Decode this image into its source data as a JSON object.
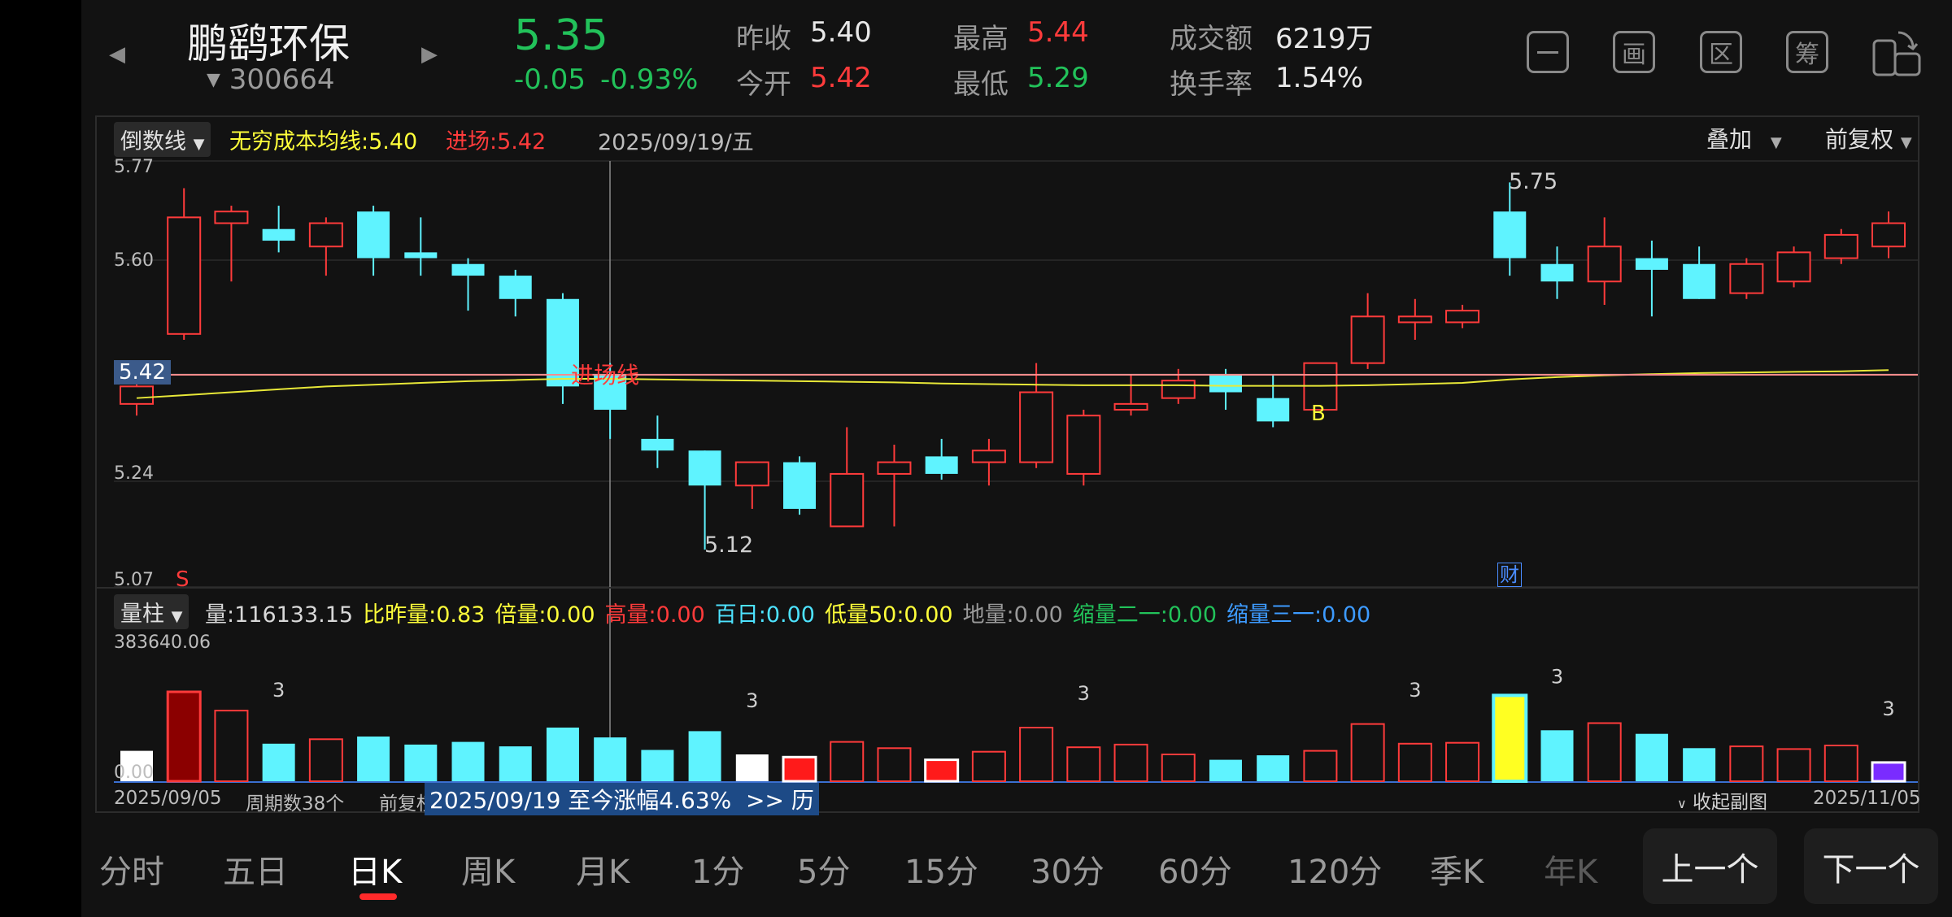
{
  "stock": {
    "name": "鹏鹞环保",
    "code": "300664",
    "price": "5.35",
    "change": "-0.05",
    "change_pct": "-0.93%"
  },
  "quote": {
    "prev_close_label": "昨收",
    "prev_close": "5.40",
    "open_label": "今开",
    "open": "5.42",
    "high_label": "最高",
    "high": "5.44",
    "low_label": "最低",
    "low": "5.29",
    "turnover_label": "成交额",
    "turnover": "6219万",
    "turnover_rate_label": "换手率",
    "turnover_rate": "1.54%"
  },
  "toolbar": {
    "icons": [
      "minus-icon",
      "draw-icon",
      "range-icon",
      "chip-icon",
      "rotate-screen-icon"
    ],
    "labels": [
      "",
      "画",
      "区",
      "筹",
      ""
    ]
  },
  "main_chart": {
    "indicator_dropdown": "倒数线",
    "ma_label": "无穷成本均线:",
    "ma_value": "5.40",
    "entry_label": "进场:",
    "entry_value": "5.42",
    "cursor_date": "2025/09/19/五",
    "overlay_dropdown": "叠加",
    "adjust_dropdown": "前复权",
    "y_ticks": [
      "5.77",
      "5.60",
      "5.42",
      "5.24",
      "5.07"
    ],
    "entry_line_label": "进场线",
    "entry_tag": "5.42",
    "max_label": "5.75",
    "min_label": "5.12",
    "sell_marker": "S",
    "buy_marker": "B",
    "finance_marker": "财"
  },
  "chart_data": {
    "type": "candlestick",
    "ylim": [
      5.07,
      5.77
    ],
    "candles": [
      {
        "o": 5.4,
        "c": 5.37,
        "h": 5.42,
        "l": 5.35,
        "color": "red"
      },
      {
        "o": 5.49,
        "c": 5.69,
        "h": 5.74,
        "l": 5.48,
        "color": "red"
      },
      {
        "o": 5.68,
        "c": 5.7,
        "h": 5.71,
        "l": 5.58,
        "color": "red"
      },
      {
        "o": 5.67,
        "c": 5.65,
        "h": 5.71,
        "l": 5.63,
        "color": "cyan"
      },
      {
        "o": 5.64,
        "c": 5.68,
        "h": 5.69,
        "l": 5.59,
        "color": "red"
      },
      {
        "o": 5.7,
        "c": 5.62,
        "h": 5.71,
        "l": 5.59,
        "color": "cyan"
      },
      {
        "o": 5.63,
        "c": 5.62,
        "h": 5.69,
        "l": 5.59,
        "color": "cyan"
      },
      {
        "o": 5.61,
        "c": 5.59,
        "h": 5.62,
        "l": 5.53,
        "color": "cyan"
      },
      {
        "o": 5.59,
        "c": 5.55,
        "h": 5.6,
        "l": 5.52,
        "color": "cyan"
      },
      {
        "o": 5.55,
        "c": 5.4,
        "h": 5.56,
        "l": 5.37,
        "color": "cyan"
      },
      {
        "o": 5.42,
        "c": 5.36,
        "h": 5.44,
        "l": 5.31,
        "color": "cyan"
      },
      {
        "o": 5.31,
        "c": 5.29,
        "h": 5.35,
        "l": 5.26,
        "color": "cyan"
      },
      {
        "o": 5.29,
        "c": 5.23,
        "h": 5.29,
        "l": 5.12,
        "color": "cyan"
      },
      {
        "o": 5.23,
        "c": 5.27,
        "h": 5.27,
        "l": 5.19,
        "color": "red"
      },
      {
        "o": 5.27,
        "c": 5.19,
        "h": 5.28,
        "l": 5.18,
        "color": "cyan"
      },
      {
        "o": 5.16,
        "c": 5.25,
        "h": 5.33,
        "l": 5.16,
        "color": "red"
      },
      {
        "o": 5.25,
        "c": 5.27,
        "h": 5.3,
        "l": 5.16,
        "color": "red"
      },
      {
        "o": 5.28,
        "c": 5.25,
        "h": 5.31,
        "l": 5.24,
        "color": "cyan"
      },
      {
        "o": 5.27,
        "c": 5.29,
        "h": 5.31,
        "l": 5.23,
        "color": "red"
      },
      {
        "o": 5.27,
        "c": 5.39,
        "h": 5.44,
        "l": 5.26,
        "color": "red"
      },
      {
        "o": 5.25,
        "c": 5.35,
        "h": 5.36,
        "l": 5.23,
        "color": "red"
      },
      {
        "o": 5.36,
        "c": 5.37,
        "h": 5.42,
        "l": 5.35,
        "color": "red"
      },
      {
        "o": 5.38,
        "c": 5.41,
        "h": 5.43,
        "l": 5.37,
        "color": "red"
      },
      {
        "o": 5.42,
        "c": 5.39,
        "h": 5.43,
        "l": 5.36,
        "color": "cyan"
      },
      {
        "o": 5.38,
        "c": 5.34,
        "h": 5.42,
        "l": 5.33,
        "color": "cyan"
      },
      {
        "o": 5.36,
        "c": 5.44,
        "h": 5.44,
        "l": 5.36,
        "color": "red"
      },
      {
        "o": 5.44,
        "c": 5.52,
        "h": 5.56,
        "l": 5.43,
        "color": "red"
      },
      {
        "o": 5.51,
        "c": 5.52,
        "h": 5.55,
        "l": 5.48,
        "color": "red"
      },
      {
        "o": 5.51,
        "c": 5.53,
        "h": 5.54,
        "l": 5.5,
        "color": "red"
      },
      {
        "o": 5.7,
        "c": 5.62,
        "h": 5.75,
        "l": 5.59,
        "color": "cyan"
      },
      {
        "o": 5.61,
        "c": 5.58,
        "h": 5.64,
        "l": 5.55,
        "color": "cyan"
      },
      {
        "o": 5.58,
        "c": 5.64,
        "h": 5.69,
        "l": 5.54,
        "color": "red"
      },
      {
        "o": 5.62,
        "c": 5.6,
        "h": 5.65,
        "l": 5.52,
        "color": "cyan"
      },
      {
        "o": 5.61,
        "c": 5.55,
        "h": 5.64,
        "l": 5.55,
        "color": "cyan"
      },
      {
        "o": 5.56,
        "c": 5.61,
        "h": 5.62,
        "l": 5.55,
        "color": "red"
      },
      {
        "o": 5.58,
        "c": 5.63,
        "h": 5.64,
        "l": 5.57,
        "color": "red"
      },
      {
        "o": 5.62,
        "c": 5.66,
        "h": 5.67,
        "l": 5.61,
        "color": "red"
      },
      {
        "o": 5.64,
        "c": 5.68,
        "h": 5.7,
        "l": 5.62,
        "color": "red"
      }
    ],
    "ma_line": [
      5.38,
      5.385,
      5.39,
      5.395,
      5.4,
      5.403,
      5.406,
      5.409,
      5.411,
      5.413,
      5.413,
      5.412,
      5.411,
      5.41,
      5.409,
      5.408,
      5.407,
      5.405,
      5.404,
      5.403,
      5.402,
      5.402,
      5.402,
      5.401,
      5.401,
      5.401,
      5.402,
      5.404,
      5.406,
      5.412,
      5.416,
      5.419,
      5.421,
      5.423,
      5.424,
      5.425,
      5.426,
      5.428
    ],
    "entry_level": 5.42,
    "volume": {
      "max_label": "383640.06",
      "zero_label": "0.00",
      "bars": [
        {
          "v": 0.34,
          "style": "white"
        },
        {
          "v": 1.0,
          "style": "darkred"
        },
        {
          "v": 0.79,
          "style": "red"
        },
        {
          "v": 0.42,
          "style": "cyan"
        },
        {
          "v": 0.47,
          "style": "red"
        },
        {
          "v": 0.5,
          "style": "cyan"
        },
        {
          "v": 0.41,
          "style": "cyan"
        },
        {
          "v": 0.44,
          "style": "cyan"
        },
        {
          "v": 0.39,
          "style": "cyan"
        },
        {
          "v": 0.6,
          "style": "cyan"
        },
        {
          "v": 0.49,
          "style": "cyan"
        },
        {
          "v": 0.35,
          "style": "cyan"
        },
        {
          "v": 0.56,
          "style": "cyan"
        },
        {
          "v": 0.3,
          "style": "white"
        },
        {
          "v": 0.27,
          "style": "redfill"
        },
        {
          "v": 0.44,
          "style": "red"
        },
        {
          "v": 0.37,
          "style": "red"
        },
        {
          "v": 0.24,
          "style": "redfill"
        },
        {
          "v": 0.33,
          "style": "red"
        },
        {
          "v": 0.6,
          "style": "red"
        },
        {
          "v": 0.38,
          "style": "red"
        },
        {
          "v": 0.41,
          "style": "red"
        },
        {
          "v": 0.3,
          "style": "red"
        },
        {
          "v": 0.24,
          "style": "cyan"
        },
        {
          "v": 0.29,
          "style": "cyan"
        },
        {
          "v": 0.34,
          "style": "red"
        },
        {
          "v": 0.64,
          "style": "red"
        },
        {
          "v": 0.42,
          "style": "red"
        },
        {
          "v": 0.43,
          "style": "red"
        },
        {
          "v": 0.96,
          "style": "yellow"
        },
        {
          "v": 0.57,
          "style": "cyan"
        },
        {
          "v": 0.65,
          "style": "red"
        },
        {
          "v": 0.53,
          "style": "cyan"
        },
        {
          "v": 0.37,
          "style": "cyan"
        },
        {
          "v": 0.39,
          "style": "red"
        },
        {
          "v": 0.36,
          "style": "red"
        },
        {
          "v": 0.4,
          "style": "red"
        },
        {
          "v": 0.21,
          "style": "purple"
        }
      ],
      "markers": [
        {
          "i": 3,
          "label": "3"
        },
        {
          "i": 13,
          "label": "3"
        },
        {
          "i": 20,
          "label": "3"
        },
        {
          "i": 27,
          "label": "3"
        },
        {
          "i": 30,
          "label": "3"
        },
        {
          "i": 37,
          "label": "3"
        }
      ]
    }
  },
  "volume_panel": {
    "dropdown": "量柱",
    "indicators": [
      {
        "text": "量:116133.15",
        "color": "#d8d8d8"
      },
      {
        "text": "比昨量:0.83",
        "color": "#ffff3a"
      },
      {
        "text": "倍量:0.00",
        "color": "#ffff3a"
      },
      {
        "text": "高量:0.00",
        "color": "#ff3b3b"
      },
      {
        "text": "百日:0.00",
        "color": "#4de3ff"
      },
      {
        "text": "低量50:0.00",
        "color": "#ffff3a"
      },
      {
        "text": "地量:0.00",
        "color": "#9a9a9a"
      },
      {
        "text": "缩量二一:0.00",
        "color": "#22c25a"
      },
      {
        "text": "缩量三一:0.00",
        "color": "#3d9bff"
      }
    ]
  },
  "footer": {
    "start_date": "2025/09/05",
    "period_count": "周期数38个",
    "adjust": "前复权",
    "range_info": "2025/09/19 至今涨幅4.63%  >> 历",
    "collapse": "收起副图",
    "end_date": "2025/11/05"
  },
  "tabs": [
    "分时",
    "五日",
    "日K",
    "周K",
    "月K",
    "1分",
    "5分",
    "15分",
    "30分",
    "60分",
    "120分",
    "季K",
    "年K"
  ],
  "active_tab": "日K",
  "nav": {
    "prev": "上一个",
    "next": "下一个"
  }
}
